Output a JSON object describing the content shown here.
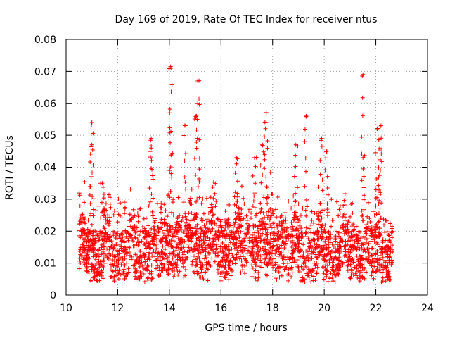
{
  "chart_data": {
    "type": "scatter",
    "title": "Day 169 of 2019, Rate Of TEC Index for receiver ntus",
    "xlabel": "GPS time / hours",
    "ylabel": "ROTI / TECUs",
    "xlim": [
      10,
      24
    ],
    "ylim": [
      0,
      0.08
    ],
    "xticks": [
      10,
      12,
      14,
      16,
      18,
      20,
      22,
      24
    ],
    "yticks": [
      0,
      0.01,
      0.02,
      0.03,
      0.04,
      0.05,
      0.06,
      0.07,
      0.08
    ],
    "xtick_labels": [
      "10",
      "12",
      "14",
      "16",
      "18",
      "20",
      "22",
      "24"
    ],
    "ytick_labels": [
      "0",
      "0.01",
      "0.02",
      "0.03",
      "0.04",
      "0.05",
      "0.06",
      "0.07",
      "0.08"
    ],
    "grid": true,
    "marker": "+",
    "series": [
      {
        "name": "ROTI",
        "color": "#ff0000",
        "x_range": [
          10.5,
          22.65
        ],
        "typical_range": [
          0.003,
          0.03
        ],
        "peaks": [
          {
            "x": 11.0,
            "y": 0.054
          },
          {
            "x": 11.0,
            "y": 0.047
          },
          {
            "x": 11.4,
            "y": 0.035
          },
          {
            "x": 13.3,
            "y": 0.046
          },
          {
            "x": 13.3,
            "y": 0.049
          },
          {
            "x": 14.0,
            "y": 0.071
          },
          {
            "x": 14.05,
            "y": 0.0715
          },
          {
            "x": 14.1,
            "y": 0.051
          },
          {
            "x": 14.6,
            "y": 0.053
          },
          {
            "x": 15.1,
            "y": 0.067
          },
          {
            "x": 15.1,
            "y": 0.06
          },
          {
            "x": 15.05,
            "y": 0.056
          },
          {
            "x": 16.6,
            "y": 0.043
          },
          {
            "x": 17.3,
            "y": 0.043
          },
          {
            "x": 17.6,
            "y": 0.047
          },
          {
            "x": 17.75,
            "y": 0.057
          },
          {
            "x": 17.75,
            "y": 0.054
          },
          {
            "x": 18.9,
            "y": 0.047
          },
          {
            "x": 19.3,
            "y": 0.056
          },
          {
            "x": 19.9,
            "y": 0.049
          },
          {
            "x": 20.1,
            "y": 0.045
          },
          {
            "x": 21.5,
            "y": 0.069
          },
          {
            "x": 21.5,
            "y": 0.043
          },
          {
            "x": 22.05,
            "y": 0.052
          },
          {
            "x": 22.2,
            "y": 0.053
          },
          {
            "x": 22.15,
            "y": 0.046
          }
        ]
      }
    ]
  }
}
